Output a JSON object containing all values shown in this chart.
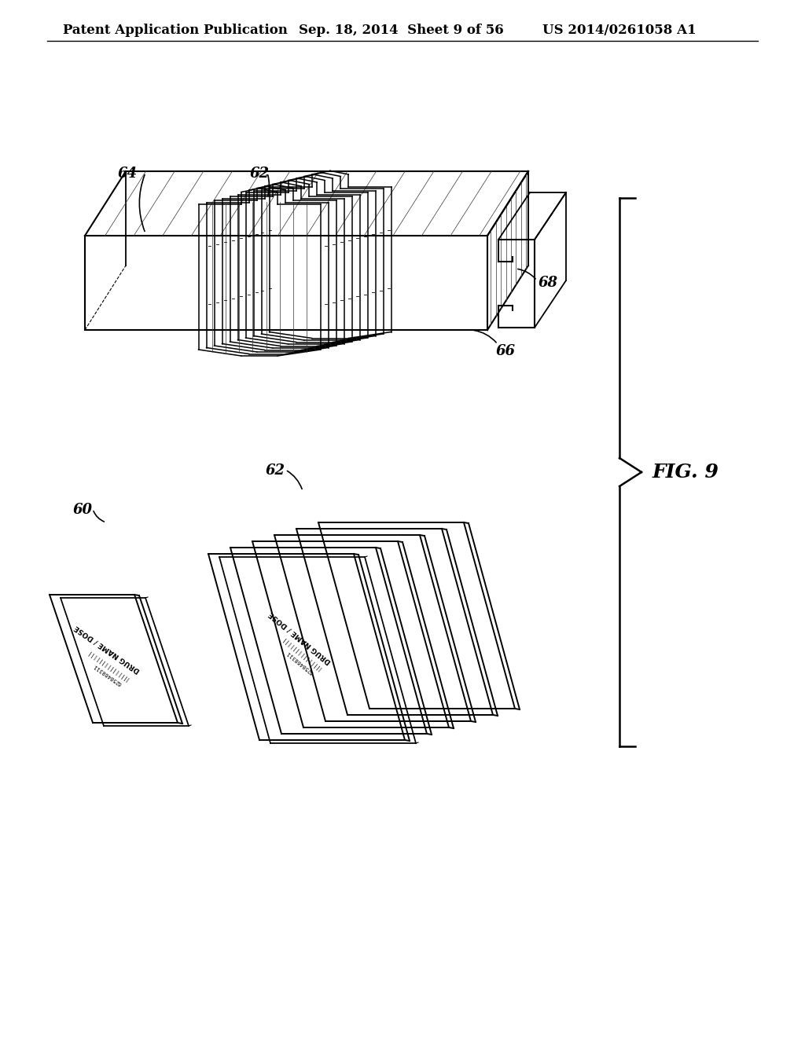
{
  "header_left": "Patent Application Publication",
  "header_middle": "Sep. 18, 2014  Sheet 9 of 56",
  "header_right": "US 2014/0261058 A1",
  "fig_label": "FIG. 9",
  "bg_color": "#ffffff",
  "line_color": "#000000",
  "header_fontsize": 12,
  "label_fontsize": 13,
  "fig_label_fontsize": 18
}
